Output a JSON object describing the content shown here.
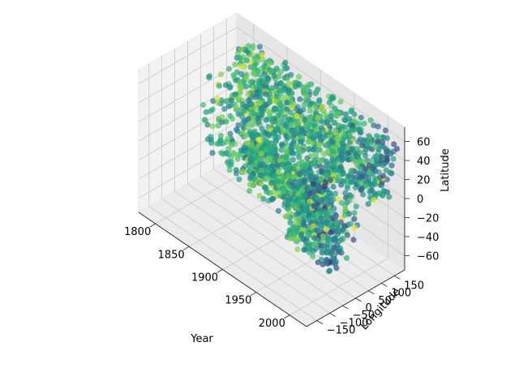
{
  "chart_data": {
    "type": "scatter",
    "projection": "3d",
    "title": "",
    "xlabel": "Year",
    "ylabel": "Longitude",
    "zlabel": "Latitude",
    "xlim": [
      1775,
      2025
    ],
    "ylim": [
      -190,
      190
    ],
    "zlim": [
      -75,
      75
    ],
    "xticks": [
      1800,
      1850,
      1900,
      1950,
      2000
    ],
    "yticks": [
      -150,
      -100,
      -50,
      0,
      50,
      100,
      150
    ],
    "zticks": [
      -60,
      -40,
      -20,
      0,
      20,
      40,
      60
    ],
    "grid": true,
    "colormap": "viridis",
    "point_alpha": 0.7,
    "point_count": 2000,
    "color_encoding": "point color varies along viridis (dark purple to yellow); most points green/teal, darker points concentrated at recent years",
    "clusters": [
      {
        "year": [
          1800,
          2020
        ],
        "longitude": [
          80,
          180
        ],
        "latitude": [
          0,
          65
        ],
        "share": 0.42
      },
      {
        "year": [
          1900,
          2020
        ],
        "longitude": [
          -130,
          -60
        ],
        "latitude": [
          15,
          60
        ],
        "share": 0.26
      },
      {
        "year": [
          1950,
          2020
        ],
        "longitude": [
          -80,
          -30
        ],
        "latitude": [
          -40,
          10
        ],
        "share": 0.12
      },
      {
        "year": [
          1800,
          2020
        ],
        "longitude": [
          -20,
          40
        ],
        "latitude": [
          -35,
          60
        ],
        "share": 0.2
      }
    ]
  }
}
